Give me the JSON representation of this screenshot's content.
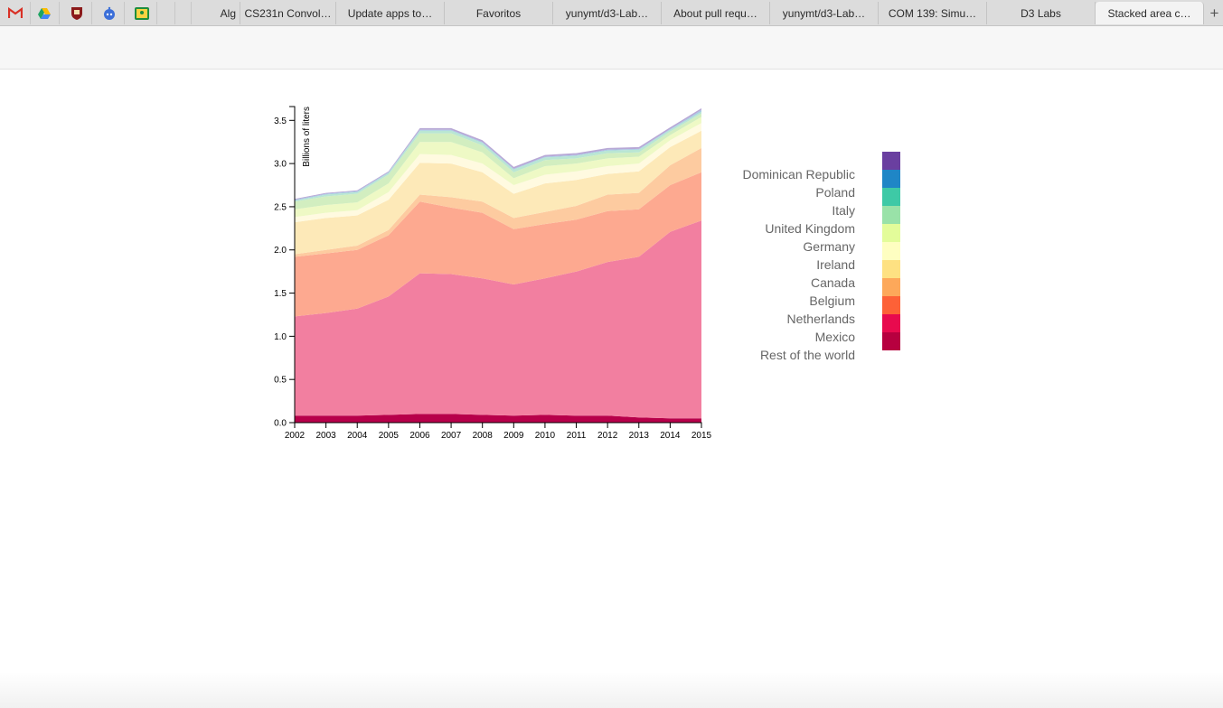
{
  "browser": {
    "pinned_tabs": [
      {
        "icon": "gmail-icon",
        "color": "#d93025"
      },
      {
        "icon": "google-drive-icon",
        "color": "#1fa463"
      },
      {
        "icon": "shield-crest-icon",
        "color": "#8b1a1a"
      },
      {
        "icon": "reddit-alien-icon",
        "color": "#3b6ed8"
      },
      {
        "icon": "classroom-icon",
        "color": "#1e8e3e"
      }
    ],
    "tabs": [
      {
        "label": "Alg",
        "active": false
      },
      {
        "label": "CS231n Convol…",
        "active": false
      },
      {
        "label": "Update apps to…",
        "active": false
      },
      {
        "label": "Favoritos",
        "active": false
      },
      {
        "label": "yunymt/d3-Lab…",
        "active": false
      },
      {
        "label": "About pull requ…",
        "active": false
      },
      {
        "label": "yunymt/d3-Lab…",
        "active": false
      },
      {
        "label": "COM 139: Simu…",
        "active": false
      },
      {
        "label": "D3 Labs",
        "active": false
      },
      {
        "label": "Stacked area c…",
        "active": true
      }
    ],
    "new_tab_label": "+"
  },
  "chart_data": {
    "type": "area",
    "stacked": true,
    "title": "",
    "xlabel": "",
    "ylabel": "Billions of liters",
    "x": [
      2002,
      2003,
      2004,
      2005,
      2006,
      2007,
      2008,
      2009,
      2010,
      2011,
      2012,
      2013,
      2014,
      2015
    ],
    "x_ticks": [
      "2002",
      "2003",
      "2004",
      "2005",
      "2006",
      "2007",
      "2008",
      "2009",
      "2010",
      "2011",
      "2012",
      "2013",
      "2014",
      "2015"
    ],
    "y_ticks": [
      "0.0",
      "0.5",
      "1.0",
      "1.5",
      "2.0",
      "2.5",
      "3.0",
      "3.5"
    ],
    "ylim": [
      0,
      3.66
    ],
    "grid": false,
    "legend_position": "right",
    "series": [
      {
        "name": "Rest of the world",
        "color": "#b7004a",
        "values": [
          0.08,
          0.08,
          0.08,
          0.09,
          0.1,
          0.1,
          0.09,
          0.08,
          0.09,
          0.08,
          0.08,
          0.06,
          0.05,
          0.05
        ]
      },
      {
        "name": "Mexico",
        "color": "#f27fa0",
        "values": [
          1.15,
          1.19,
          1.24,
          1.37,
          1.63,
          1.62,
          1.58,
          1.52,
          1.58,
          1.67,
          1.78,
          1.86,
          2.16,
          2.29
        ]
      },
      {
        "name": "Netherlands",
        "color": "#fda990",
        "values": [
          0.69,
          0.69,
          0.68,
          0.71,
          0.83,
          0.77,
          0.76,
          0.64,
          0.63,
          0.6,
          0.59,
          0.55,
          0.54,
          0.56
        ]
      },
      {
        "name": "Belgium",
        "color": "#fdcba0",
        "values": [
          0.03,
          0.04,
          0.05,
          0.06,
          0.08,
          0.12,
          0.13,
          0.13,
          0.14,
          0.16,
          0.19,
          0.19,
          0.23,
          0.28
        ]
      },
      {
        "name": "Canada",
        "color": "#fde9b8",
        "values": [
          0.37,
          0.37,
          0.35,
          0.35,
          0.37,
          0.39,
          0.34,
          0.28,
          0.33,
          0.3,
          0.24,
          0.25,
          0.21,
          0.2
        ]
      },
      {
        "name": "Ireland",
        "color": "#fffae0",
        "values": [
          0.06,
          0.06,
          0.06,
          0.09,
          0.1,
          0.1,
          0.1,
          0.1,
          0.1,
          0.1,
          0.09,
          0.09,
          0.08,
          0.09
        ]
      },
      {
        "name": "Germany",
        "color": "#eef9c5",
        "values": [
          0.09,
          0.09,
          0.09,
          0.1,
          0.14,
          0.15,
          0.13,
          0.08,
          0.1,
          0.09,
          0.09,
          0.08,
          0.06,
          0.07
        ]
      },
      {
        "name": "United Kingdom",
        "color": "#d2eec0",
        "values": [
          0.09,
          0.1,
          0.1,
          0.1,
          0.1,
          0.1,
          0.08,
          0.07,
          0.07,
          0.06,
          0.06,
          0.05,
          0.04,
          0.04
        ]
      },
      {
        "name": "Italy",
        "color": "#b9e6d3",
        "values": [
          0.01,
          0.02,
          0.02,
          0.02,
          0.03,
          0.03,
          0.03,
          0.03,
          0.03,
          0.03,
          0.03,
          0.03,
          0.02,
          0.02
        ]
      },
      {
        "name": "Poland",
        "color": "#a7cde4",
        "values": [
          0.01,
          0.01,
          0.01,
          0.01,
          0.01,
          0.01,
          0.01,
          0.01,
          0.01,
          0.01,
          0.01,
          0.01,
          0.01,
          0.02
        ]
      },
      {
        "name": "Dominican Republic",
        "color": "#b7a8d6",
        "values": [
          0.01,
          0.01,
          0.01,
          0.01,
          0.02,
          0.02,
          0.02,
          0.02,
          0.02,
          0.02,
          0.02,
          0.02,
          0.02,
          0.02
        ]
      }
    ],
    "legend": {
      "labels": [
        "Dominican Republic",
        "Poland",
        "Italy",
        "United Kingdom",
        "Germany",
        "Ireland",
        "Canada",
        "Belgium",
        "Netherlands",
        "Mexico",
        "Rest of the world"
      ],
      "swatch_colors": [
        "#6a3fa0",
        "#1f86c6",
        "#3ec9a6",
        "#99e2a8",
        "#e3fc9a",
        "#fefec1",
        "#fee182",
        "#fda85a",
        "#fd6137",
        "#e80a4e",
        "#b7003f"
      ]
    }
  }
}
